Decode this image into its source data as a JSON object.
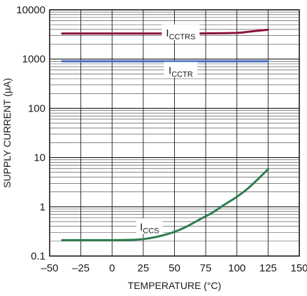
{
  "chart_data": {
    "type": "line",
    "xlabel": "TEMPERATURE (°C)",
    "ylabel": "SUPPLY CURRENT (µA)",
    "xlim": [
      -50,
      150
    ],
    "ylim": [
      0.1,
      10000
    ],
    "yscale": "log",
    "grid": true,
    "x_ticks": [
      -50,
      -25,
      0,
      25,
      50,
      75,
      100,
      125,
      150
    ],
    "x_tick_labels": [
      "–50",
      "–25",
      "0",
      "25",
      "50",
      "75",
      "100",
      "125",
      "150"
    ],
    "y_ticks": [
      0.1,
      1,
      10,
      100,
      1000,
      10000
    ],
    "y_tick_labels": [
      "0.1",
      "1",
      "10",
      "100",
      "1000",
      "10000"
    ],
    "series": [
      {
        "name_main": "I",
        "name_sub": "CCTRS",
        "color": "#8a1538",
        "x": [
          -40,
          -25,
          0,
          25,
          50,
          75,
          100,
          110,
          125
        ],
        "y": [
          3300,
          3300,
          3300,
          3300,
          3300,
          3320,
          3400,
          3600,
          3950
        ]
      },
      {
        "name_main": "I",
        "name_sub": "CCTR",
        "color": "#4a6fc4",
        "x": [
          -40,
          -25,
          0,
          25,
          50,
          75,
          100,
          125
        ],
        "y": [
          900,
          900,
          900,
          900,
          900,
          900,
          900,
          900
        ]
      },
      {
        "name_main": "I",
        "name_sub": "CCS",
        "color": "#2e7d4f",
        "x": [
          -40,
          -25,
          0,
          20,
          30,
          40,
          50,
          60,
          70,
          80,
          90,
          100,
          110,
          125
        ],
        "y": [
          0.21,
          0.21,
          0.21,
          0.215,
          0.23,
          0.26,
          0.31,
          0.4,
          0.55,
          0.75,
          1.1,
          1.6,
          2.5,
          5.8
        ]
      }
    ]
  }
}
